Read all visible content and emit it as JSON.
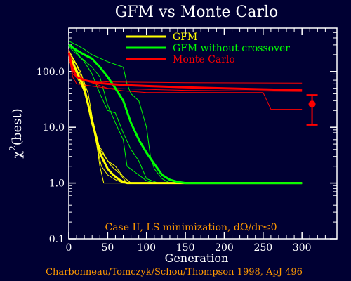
{
  "chart_data": {
    "type": "line",
    "title": "GFM vs Monte Carlo",
    "xlabel": "Generation",
    "ylabel_base": "χ",
    "ylabel_sup": "2",
    "ylabel_rest": "(best)",
    "xscale": "linear",
    "yscale": "log",
    "xlim": [
      0,
      345
    ],
    "ylim": [
      0.1,
      600
    ],
    "x_ticks": [
      0,
      50,
      100,
      150,
      200,
      250,
      300
    ],
    "x_tick_labels": [
      "0",
      "50",
      "100",
      "150",
      "200",
      "250",
      "300"
    ],
    "y_ticks": [
      0.1,
      1.0,
      10.0,
      100.0
    ],
    "y_tick_labels": [
      "0.1",
      "1.0",
      "10.0",
      "100.0"
    ],
    "grid": false,
    "legend_position": "top-right",
    "legend": [
      {
        "label": "GFM",
        "color": "#ffff00"
      },
      {
        "label": "GFM without crossover",
        "color": "#00ff00"
      },
      {
        "label": "Monte Carlo",
        "color": "#ff0000"
      }
    ],
    "annotation": "Case II, LS minimization, dΩ/dr≤0",
    "credit": "Charbonneau/Tomczyk/Schou/Thompson 1998, ApJ 496",
    "series": [
      {
        "group": "GFM",
        "role": "mean",
        "color": "#ffff00",
        "points": [
          [
            0,
            180
          ],
          [
            5,
            150
          ],
          [
            10,
            100
          ],
          [
            15,
            70
          ],
          [
            20,
            48
          ],
          [
            25,
            25
          ],
          [
            30,
            12
          ],
          [
            35,
            7
          ],
          [
            40,
            3.5
          ],
          [
            45,
            2.5
          ],
          [
            50,
            1.8
          ],
          [
            55,
            1.5
          ],
          [
            60,
            1.3
          ],
          [
            65,
            1.15
          ],
          [
            70,
            1.05
          ],
          [
            75,
            1.0
          ],
          [
            100,
            1.0
          ],
          [
            300,
            1.0
          ]
        ]
      },
      {
        "group": "GFM",
        "role": "run",
        "color": "#ffff00",
        "points": [
          [
            0,
            220
          ],
          [
            10,
            130
          ],
          [
            20,
            60
          ],
          [
            30,
            12
          ],
          [
            38,
            3.5
          ],
          [
            42,
            2
          ],
          [
            50,
            1.4
          ],
          [
            60,
            1.15
          ],
          [
            70,
            1.0
          ],
          [
            300,
            1.0
          ]
        ]
      },
      {
        "group": "GFM",
        "role": "run",
        "color": "#ffff00",
        "points": [
          [
            0,
            240
          ],
          [
            15,
            100
          ],
          [
            25,
            40
          ],
          [
            35,
            6
          ],
          [
            40,
            2
          ],
          [
            45,
            1.0
          ],
          [
            300,
            1.0
          ]
        ]
      },
      {
        "group": "GFM",
        "role": "run",
        "color": "#ffff00",
        "points": [
          [
            0,
            150
          ],
          [
            10,
            110
          ],
          [
            20,
            55
          ],
          [
            30,
            15
          ],
          [
            40,
            4
          ],
          [
            55,
            2
          ],
          [
            65,
            1.5
          ],
          [
            75,
            1.0
          ],
          [
            300,
            1.0
          ]
        ]
      },
      {
        "group": "GFM",
        "role": "run",
        "color": "#ffff00",
        "points": [
          [
            0,
            200
          ],
          [
            8,
            90
          ],
          [
            18,
            50
          ],
          [
            28,
            20
          ],
          [
            38,
            5
          ],
          [
            50,
            2.5
          ],
          [
            60,
            2
          ],
          [
            70,
            1.3
          ],
          [
            80,
            1.0
          ],
          [
            300,
            1.0
          ]
        ]
      },
      {
        "group": "GFM without crossover",
        "role": "mean",
        "color": "#00ff00",
        "points": [
          [
            0,
            300
          ],
          [
            10,
            240
          ],
          [
            20,
            200
          ],
          [
            30,
            170
          ],
          [
            40,
            120
          ],
          [
            50,
            80
          ],
          [
            60,
            50
          ],
          [
            70,
            30
          ],
          [
            80,
            12
          ],
          [
            90,
            6
          ],
          [
            100,
            3.5
          ],
          [
            110,
            2.2
          ],
          [
            120,
            1.4
          ],
          [
            130,
            1.15
          ],
          [
            140,
            1.05
          ],
          [
            150,
            1.0
          ],
          [
            300,
            1.0
          ]
        ]
      },
      {
        "group": "GFM without crossover",
        "role": "run",
        "color": "#00ff00",
        "points": [
          [
            0,
            350
          ],
          [
            10,
            300
          ],
          [
            20,
            250
          ],
          [
            30,
            200
          ],
          [
            50,
            150
          ],
          [
            70,
            120
          ],
          [
            75,
            60
          ],
          [
            80,
            40
          ],
          [
            90,
            30
          ],
          [
            100,
            10
          ],
          [
            105,
            3
          ],
          [
            110,
            1.8
          ],
          [
            120,
            1.2
          ],
          [
            130,
            1.0
          ],
          [
            300,
            1.0
          ]
        ]
      },
      {
        "group": "GFM without crossover",
        "role": "run",
        "color": "#00ff00",
        "points": [
          [
            0,
            320
          ],
          [
            15,
            180
          ],
          [
            30,
            120
          ],
          [
            40,
            80
          ],
          [
            50,
            25
          ],
          [
            60,
            12
          ],
          [
            70,
            6
          ],
          [
            75,
            2
          ],
          [
            90,
            1.4
          ],
          [
            100,
            1.1
          ],
          [
            110,
            1.0
          ],
          [
            300,
            1.0
          ]
        ]
      },
      {
        "group": "GFM without crossover",
        "role": "run",
        "color": "#00ff00",
        "points": [
          [
            0,
            280
          ],
          [
            20,
            150
          ],
          [
            30,
            90
          ],
          [
            40,
            40
          ],
          [
            50,
            20
          ],
          [
            60,
            18
          ],
          [
            70,
            8
          ],
          [
            80,
            4
          ],
          [
            90,
            2.5
          ],
          [
            100,
            1.2
          ],
          [
            115,
            1.0
          ],
          [
            300,
            1.0
          ]
        ]
      },
      {
        "group": "Monte Carlo",
        "role": "mean",
        "color": "#ff0000",
        "points": [
          [
            0,
            220
          ],
          [
            5,
            110
          ],
          [
            10,
            80
          ],
          [
            20,
            70
          ],
          [
            30,
            65
          ],
          [
            40,
            62
          ],
          [
            50,
            60
          ],
          [
            75,
            57
          ],
          [
            100,
            55
          ],
          [
            150,
            52
          ],
          [
            200,
            50
          ],
          [
            250,
            48
          ],
          [
            300,
            46
          ]
        ]
      },
      {
        "group": "Monte Carlo",
        "role": "run",
        "color": "#ff0000",
        "points": [
          [
            0,
            250
          ],
          [
            5,
            90
          ],
          [
            15,
            70
          ],
          [
            50,
            65
          ],
          [
            150,
            63
          ],
          [
            300,
            62
          ]
        ]
      },
      {
        "group": "Monte Carlo",
        "role": "run",
        "color": "#ff0000",
        "points": [
          [
            0,
            200
          ],
          [
            5,
            80
          ],
          [
            10,
            60
          ],
          [
            50,
            50
          ],
          [
            70,
            45
          ],
          [
            100,
            42
          ],
          [
            250,
            42
          ],
          [
            260,
            21
          ],
          [
            300,
            21
          ]
        ]
      },
      {
        "group": "Monte Carlo",
        "role": "run",
        "color": "#ff0000",
        "points": [
          [
            0,
            230
          ],
          [
            8,
            100
          ],
          [
            20,
            70
          ],
          [
            50,
            50
          ],
          [
            150,
            46
          ],
          [
            300,
            44
          ]
        ]
      }
    ],
    "error_bar": {
      "x": 313,
      "y": 26,
      "low": 11,
      "high": 38,
      "color": "#ff0000"
    }
  }
}
